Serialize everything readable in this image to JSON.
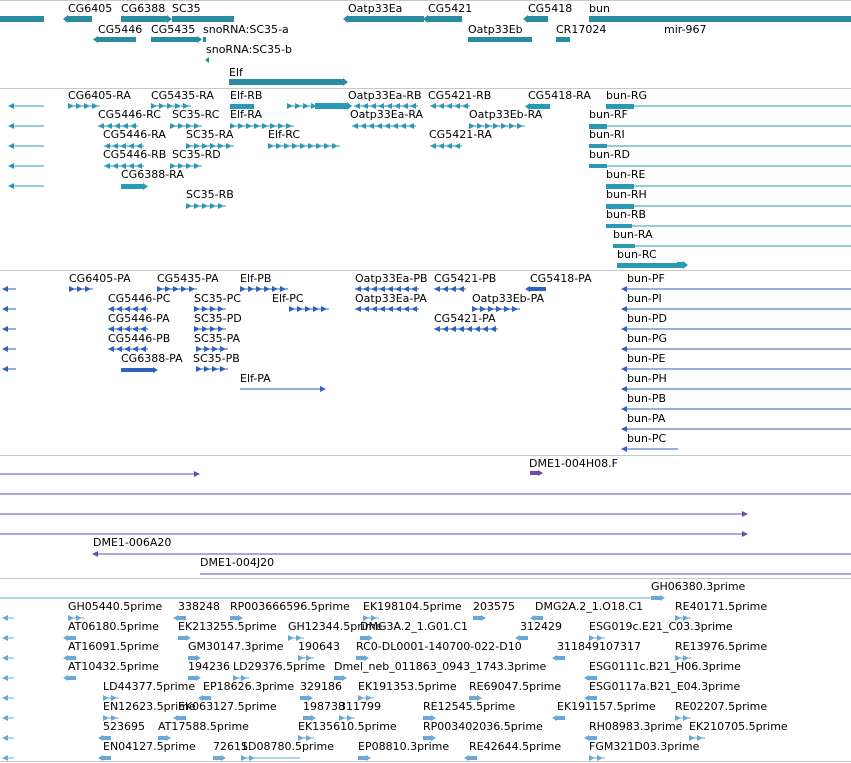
{
  "tracks": {
    "genes": {
      "color": "#2a8ca0",
      "labels": [
        {
          "text": "CG6405"
        },
        {
          "text": "CG6388"
        },
        {
          "text": "SC35"
        },
        {
          "text": "Oatp33Ea"
        },
        {
          "text": "CG5421"
        },
        {
          "text": "CG5418"
        },
        {
          "text": "bun"
        },
        {
          "text": "CG5446"
        },
        {
          "text": "CG5435"
        },
        {
          "text": "snoRNA:SC35-a"
        },
        {
          "text": "Oatp33Eb"
        },
        {
          "text": "CR17024"
        },
        {
          "text": "mir-967"
        },
        {
          "text": "snoRNA:SC35-b"
        },
        {
          "text": "Elf"
        }
      ]
    },
    "transcripts": {
      "color": "#2a9ab4",
      "labels": [
        {
          "text": "CG6405-RA"
        },
        {
          "text": "CG5435-RA"
        },
        {
          "text": "Elf-RB"
        },
        {
          "text": "Oatp33Ea-RB"
        },
        {
          "text": "CG5421-RB"
        },
        {
          "text": "CG5418-RA"
        },
        {
          "text": "bun-RG"
        },
        {
          "text": "CG5446-RC"
        },
        {
          "text": "SC35-RC"
        },
        {
          "text": "Elf-RA"
        },
        {
          "text": "Oatp33Ea-RA"
        },
        {
          "text": "Oatp33Eb-RA"
        },
        {
          "text": "bun-RF"
        },
        {
          "text": "CG5446-RA"
        },
        {
          "text": "SC35-RA"
        },
        {
          "text": "Elf-RC"
        },
        {
          "text": "CG5421-RA"
        },
        {
          "text": "bun-RI"
        },
        {
          "text": "CG5446-RB"
        },
        {
          "text": "SC35-RD"
        },
        {
          "text": "bun-RD"
        },
        {
          "text": "CG6388-RA"
        },
        {
          "text": "bun-RE"
        },
        {
          "text": "SC35-RB"
        },
        {
          "text": "bun-RH"
        },
        {
          "text": "bun-RB"
        },
        {
          "text": "bun-RA"
        },
        {
          "text": "bun-RC"
        }
      ]
    },
    "proteins": {
      "color": "#3060c0",
      "labels": [
        {
          "text": "CG6405-PA"
        },
        {
          "text": "CG5435-PA"
        },
        {
          "text": "Elf-PB"
        },
        {
          "text": "Oatp33Ea-PB"
        },
        {
          "text": "CG5421-PB"
        },
        {
          "text": "CG5418-PA"
        },
        {
          "text": "bun-PF"
        },
        {
          "text": "CG5446-PC"
        },
        {
          "text": "SC35-PC"
        },
        {
          "text": "Elf-PC"
        },
        {
          "text": "Oatp33Ea-PA"
        },
        {
          "text": "Oatp33Eb-PA"
        },
        {
          "text": "bun-PI"
        },
        {
          "text": "CG5446-PA"
        },
        {
          "text": "SC35-PD"
        },
        {
          "text": "CG5421-PA"
        },
        {
          "text": "bun-PD"
        },
        {
          "text": "CG5446-PB"
        },
        {
          "text": "SC35-PA"
        },
        {
          "text": "bun-PG"
        },
        {
          "text": "CG6388-PA"
        },
        {
          "text": "SC35-PB"
        },
        {
          "text": "bun-PE"
        },
        {
          "text": "Elf-PA"
        },
        {
          "text": "bun-PH"
        },
        {
          "text": "bun-PB"
        },
        {
          "text": "bun-PA"
        },
        {
          "text": "bun-PC"
        }
      ]
    },
    "clones": {
      "color": "#6a4aa8",
      "labels": [
        {
          "text": "DME1-004H08.F"
        },
        {
          "text": "DME1-006A20"
        },
        {
          "text": "DME1-004J20"
        }
      ]
    },
    "ests": {
      "color": "#6aa8d8",
      "labels": [
        {
          "text": "GH06380.3prime"
        },
        {
          "text": "GH05440.5prime"
        },
        {
          "text": "338248"
        },
        {
          "text": "RP003666596.5prime"
        },
        {
          "text": "EK198104.5prime"
        },
        {
          "text": "203575"
        },
        {
          "text": "DMG2A.2_1.O18.C1"
        },
        {
          "text": "RE40171.5prime"
        },
        {
          "text": "AT06180.5prime"
        },
        {
          "text": "EK213255.5prime"
        },
        {
          "text": "GH12344.5prime"
        },
        {
          "text": "DMG3A.2_1.G01.C1"
        },
        {
          "text": "312429"
        },
        {
          "text": "ESG019c.E21_C03.3prime"
        },
        {
          "text": "AT16091.5prime"
        },
        {
          "text": "GM30147.3prime"
        },
        {
          "text": "190643"
        },
        {
          "text": "RC0-DL0001-140700-022-D10"
        },
        {
          "text": "311849107317"
        },
        {
          "text": "RE13976.5prime"
        },
        {
          "text": "AT10432.5prime"
        },
        {
          "text": "194236"
        },
        {
          "text": "LD29376.5prime"
        },
        {
          "text": "Dmel_neb_011863_0943_1743.3prime"
        },
        {
          "text": "ESG0111c.B21_H06.3prime"
        },
        {
          "text": "LD44377.5prime"
        },
        {
          "text": "EP18626.3prime"
        },
        {
          "text": "329186"
        },
        {
          "text": "EK191353.5prime"
        },
        {
          "text": "RE69047.5prime"
        },
        {
          "text": "ESG0117a.B21_E04.3prime"
        },
        {
          "text": "EN12623.5prime"
        },
        {
          "text": "EK063127.5prime"
        },
        {
          "text": "198738"
        },
        {
          "text": "311799"
        },
        {
          "text": "RE12545.5prime"
        },
        {
          "text": "EK191157.5prime"
        },
        {
          "text": "RE02207.5prime"
        },
        {
          "text": "523695"
        },
        {
          "text": "AT17588.5prime"
        },
        {
          "text": "EK135610.5prime"
        },
        {
          "text": "RP003402036.5prime"
        },
        {
          "text": "RH08983.3prime"
        },
        {
          "text": "EK210705.5prime"
        },
        {
          "text": "EN04127.5prime"
        },
        {
          "text": "72611"
        },
        {
          "text": "SD08780.5prime"
        },
        {
          "text": "EP08810.3prime"
        },
        {
          "text": "RE42644.5prime"
        },
        {
          "text": "FGM321D03.3prime"
        }
      ]
    }
  }
}
